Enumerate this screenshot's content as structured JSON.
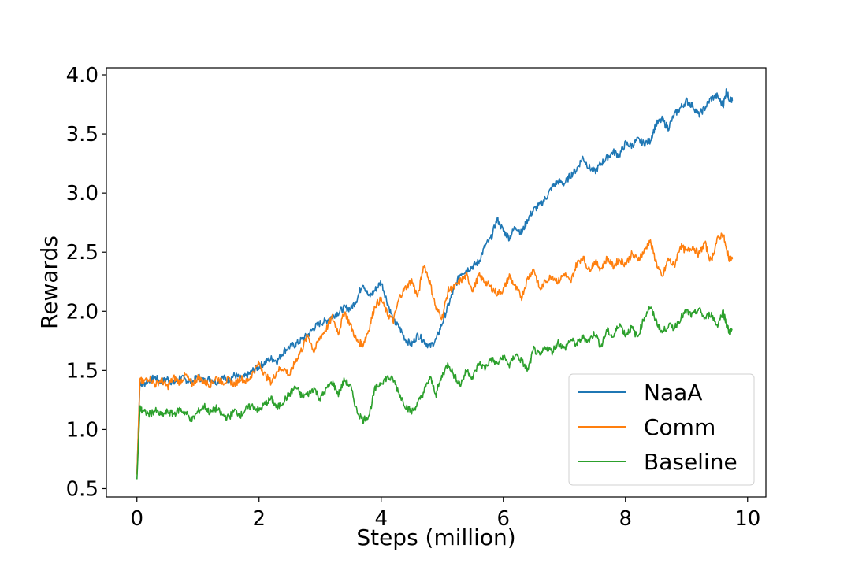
{
  "chart_data": {
    "type": "line",
    "title": "",
    "xlabel": "Steps (million)",
    "ylabel": "Rewards",
    "xlim": [
      -0.5,
      10.3
    ],
    "ylim": [
      0.43,
      4.06
    ],
    "xticks": [
      0,
      2,
      4,
      6,
      8,
      10
    ],
    "xtick_labels": [
      "0",
      "2",
      "4",
      "6",
      "8",
      "10"
    ],
    "yticks": [
      0.5,
      1.0,
      1.5,
      2.0,
      2.5,
      3.0,
      3.5,
      4.0
    ],
    "ytick_labels": [
      "0.5",
      "1.0",
      "1.5",
      "2.0",
      "2.5",
      "3.0",
      "3.5",
      "4.0"
    ],
    "grid": false,
    "legend": {
      "position": "bottom-right"
    },
    "series": [
      {
        "name": "NaaA",
        "color": "#1f77b4",
        "x": [
          0.0,
          0.05,
          0.1,
          0.2,
          0.3,
          0.4,
          0.5,
          0.6,
          0.7,
          0.8,
          0.9,
          1.0,
          1.1,
          1.2,
          1.3,
          1.4,
          1.5,
          1.6,
          1.7,
          1.8,
          1.9,
          2.0,
          2.1,
          2.2,
          2.3,
          2.4,
          2.5,
          2.6,
          2.7,
          2.8,
          2.9,
          3.0,
          3.1,
          3.2,
          3.3,
          3.4,
          3.5,
          3.6,
          3.7,
          3.8,
          3.9,
          4.0,
          4.1,
          4.2,
          4.3,
          4.4,
          4.5,
          4.6,
          4.7,
          4.8,
          4.9,
          5.0,
          5.1,
          5.2,
          5.3,
          5.4,
          5.5,
          5.6,
          5.7,
          5.8,
          5.9,
          6.0,
          6.1,
          6.2,
          6.3,
          6.4,
          6.5,
          6.6,
          6.7,
          6.8,
          6.9,
          7.0,
          7.1,
          7.2,
          7.3,
          7.4,
          7.5,
          7.6,
          7.7,
          7.8,
          7.9,
          8.0,
          8.1,
          8.2,
          8.3,
          8.4,
          8.5,
          8.6,
          8.7,
          8.8,
          8.9,
          9.0,
          9.1,
          9.2,
          9.3,
          9.4,
          9.5,
          9.6,
          9.65,
          9.7,
          9.75
        ],
        "values": [
          0.62,
          1.4,
          1.38,
          1.42,
          1.44,
          1.4,
          1.43,
          1.39,
          1.44,
          1.42,
          1.4,
          1.45,
          1.41,
          1.43,
          1.4,
          1.44,
          1.42,
          1.46,
          1.43,
          1.45,
          1.5,
          1.53,
          1.57,
          1.6,
          1.58,
          1.66,
          1.7,
          1.72,
          1.76,
          1.8,
          1.86,
          1.9,
          1.92,
          1.96,
          1.99,
          2.03,
          2.02,
          2.1,
          2.24,
          2.12,
          2.18,
          2.25,
          2.08,
          1.92,
          1.86,
          1.76,
          1.72,
          1.8,
          1.75,
          1.7,
          1.76,
          1.9,
          2.05,
          2.2,
          2.32,
          2.35,
          2.38,
          2.42,
          2.55,
          2.62,
          2.78,
          2.68,
          2.62,
          2.72,
          2.66,
          2.78,
          2.86,
          2.9,
          2.96,
          3.05,
          3.1,
          3.08,
          3.15,
          3.2,
          3.3,
          3.22,
          3.18,
          3.25,
          3.3,
          3.35,
          3.32,
          3.42,
          3.4,
          3.45,
          3.42,
          3.44,
          3.58,
          3.62,
          3.55,
          3.66,
          3.72,
          3.78,
          3.74,
          3.66,
          3.72,
          3.8,
          3.82,
          3.74,
          3.86,
          3.8,
          3.78
        ]
      },
      {
        "name": "Comm",
        "color": "#ff7f0e",
        "x": [
          0.0,
          0.05,
          0.1,
          0.2,
          0.3,
          0.4,
          0.5,
          0.6,
          0.7,
          0.8,
          0.9,
          1.0,
          1.1,
          1.2,
          1.3,
          1.4,
          1.5,
          1.6,
          1.7,
          1.8,
          1.9,
          2.0,
          2.1,
          2.2,
          2.3,
          2.4,
          2.5,
          2.6,
          2.7,
          2.8,
          2.9,
          3.0,
          3.1,
          3.2,
          3.3,
          3.4,
          3.5,
          3.6,
          3.7,
          3.8,
          3.9,
          4.0,
          4.1,
          4.2,
          4.3,
          4.4,
          4.5,
          4.6,
          4.7,
          4.8,
          4.9,
          5.0,
          5.1,
          5.2,
          5.3,
          5.4,
          5.5,
          5.6,
          5.7,
          5.8,
          5.9,
          6.0,
          6.1,
          6.2,
          6.3,
          6.4,
          6.5,
          6.6,
          6.7,
          6.8,
          6.9,
          7.0,
          7.1,
          7.2,
          7.3,
          7.4,
          7.5,
          7.6,
          7.7,
          7.8,
          7.9,
          8.0,
          8.1,
          8.2,
          8.3,
          8.4,
          8.5,
          8.6,
          8.7,
          8.8,
          8.9,
          9.0,
          9.1,
          9.2,
          9.3,
          9.4,
          9.5,
          9.6,
          9.65,
          9.7,
          9.75
        ],
        "values": [
          0.62,
          1.42,
          1.4,
          1.44,
          1.38,
          1.42,
          1.36,
          1.44,
          1.4,
          1.46,
          1.38,
          1.44,
          1.4,
          1.38,
          1.44,
          1.4,
          1.42,
          1.38,
          1.44,
          1.4,
          1.48,
          1.56,
          1.46,
          1.4,
          1.5,
          1.52,
          1.46,
          1.58,
          1.68,
          1.8,
          1.66,
          1.78,
          1.85,
          1.95,
          1.82,
          2.0,
          1.88,
          1.75,
          1.72,
          1.85,
          2.05,
          2.1,
          1.98,
          1.92,
          2.12,
          2.2,
          2.26,
          2.12,
          2.4,
          2.24,
          2.02,
          1.95,
          2.18,
          2.2,
          2.26,
          2.3,
          2.18,
          2.3,
          2.25,
          2.2,
          2.15,
          2.18,
          2.3,
          2.2,
          2.12,
          2.28,
          2.36,
          2.18,
          2.26,
          2.3,
          2.25,
          2.32,
          2.24,
          2.4,
          2.46,
          2.35,
          2.42,
          2.36,
          2.45,
          2.38,
          2.44,
          2.4,
          2.48,
          2.44,
          2.5,
          2.6,
          2.42,
          2.28,
          2.44,
          2.38,
          2.56,
          2.5,
          2.55,
          2.48,
          2.58,
          2.42,
          2.6,
          2.66,
          2.52,
          2.45,
          2.44
        ]
      },
      {
        "name": "Baseline",
        "color": "#2ca02c",
        "x": [
          0.0,
          0.05,
          0.1,
          0.2,
          0.3,
          0.4,
          0.5,
          0.6,
          0.7,
          0.8,
          0.9,
          1.0,
          1.1,
          1.2,
          1.3,
          1.4,
          1.5,
          1.6,
          1.7,
          1.8,
          1.9,
          2.0,
          2.1,
          2.2,
          2.3,
          2.4,
          2.5,
          2.6,
          2.7,
          2.8,
          2.9,
          3.0,
          3.1,
          3.2,
          3.3,
          3.4,
          3.5,
          3.6,
          3.7,
          3.8,
          3.9,
          4.0,
          4.1,
          4.2,
          4.3,
          4.4,
          4.5,
          4.6,
          4.7,
          4.8,
          4.9,
          5.0,
          5.1,
          5.2,
          5.3,
          5.4,
          5.5,
          5.6,
          5.7,
          5.8,
          5.9,
          6.0,
          6.1,
          6.2,
          6.3,
          6.4,
          6.5,
          6.6,
          6.7,
          6.8,
          6.9,
          7.0,
          7.1,
          7.2,
          7.3,
          7.4,
          7.5,
          7.6,
          7.7,
          7.8,
          7.9,
          8.0,
          8.1,
          8.2,
          8.3,
          8.4,
          8.5,
          8.6,
          8.7,
          8.8,
          8.9,
          9.0,
          9.1,
          9.2,
          9.3,
          9.4,
          9.5,
          9.6,
          9.65,
          9.7,
          9.75
        ],
        "values": [
          0.58,
          1.18,
          1.15,
          1.13,
          1.16,
          1.12,
          1.15,
          1.13,
          1.17,
          1.14,
          1.08,
          1.15,
          1.2,
          1.14,
          1.18,
          1.12,
          1.1,
          1.16,
          1.12,
          1.18,
          1.2,
          1.16,
          1.22,
          1.26,
          1.18,
          1.24,
          1.3,
          1.36,
          1.28,
          1.3,
          1.35,
          1.26,
          1.34,
          1.4,
          1.3,
          1.42,
          1.36,
          1.16,
          1.08,
          1.12,
          1.34,
          1.4,
          1.44,
          1.42,
          1.3,
          1.2,
          1.15,
          1.22,
          1.32,
          1.44,
          1.3,
          1.46,
          1.56,
          1.45,
          1.38,
          1.5,
          1.44,
          1.56,
          1.52,
          1.6,
          1.55,
          1.62,
          1.54,
          1.64,
          1.58,
          1.5,
          1.68,
          1.62,
          1.7,
          1.66,
          1.74,
          1.68,
          1.76,
          1.72,
          1.78,
          1.75,
          1.82,
          1.7,
          1.84,
          1.78,
          1.9,
          1.8,
          1.86,
          1.78,
          1.94,
          2.04,
          1.92,
          1.82,
          1.88,
          1.86,
          1.94,
          2.0,
          1.96,
          2.02,
          1.94,
          1.98,
          1.88,
          2.0,
          1.9,
          1.82,
          1.84
        ]
      }
    ]
  }
}
